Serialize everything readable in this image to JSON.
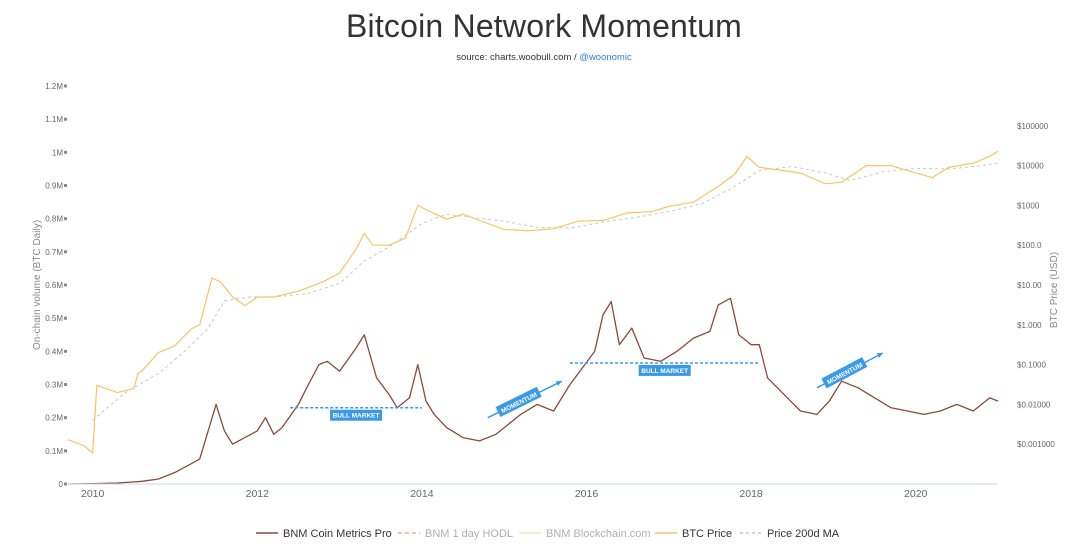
{
  "title": "Bitcoin Network Momentum",
  "subtitle": {
    "source": "source: charts.woobull.com / ",
    "handle": "@woonomic"
  },
  "colors": {
    "bnm_pro": "#8b4a3a",
    "bnm_hodl": "#f0b28a",
    "bnm_blockchain": "#f7e3b8",
    "btc_price": "#f5c562",
    "price_ma": "#c8c8c8",
    "annotation": "#3a9ae8"
  },
  "chart_data": {
    "type": "line",
    "title": "Bitcoin Network Momentum",
    "x_range": [
      2009.7,
      2021.0
    ],
    "x_ticks": [
      "2010",
      "2012",
      "2014",
      "2016",
      "2018",
      "2020"
    ],
    "y_left": {
      "label": "On-chain volume (BTC Daily)",
      "range": [
        0,
        1200000
      ],
      "ticks": [
        "0",
        "0.1M",
        "0.2M",
        "0.3M",
        "0.4M",
        "0.5M",
        "0.6M",
        "0.7M",
        "0.8M",
        "0.9M",
        "1M",
        "1.1M",
        "1.2M"
      ]
    },
    "y_right": {
      "label": "BTC Price (USD)",
      "scale": "log",
      "range": [
        0.0001,
        1000000
      ],
      "ticks": [
        "$0.001000",
        "$0.01000",
        "$0.1000",
        "$1.000",
        "$10.00",
        "$100.0",
        "$1000",
        "$10000",
        "$100000"
      ]
    },
    "legend_position": "bottom-center",
    "series": [
      {
        "name": "BNM Coin Metrics Pro",
        "axis": "left",
        "points": [
          [
            2009.7,
            0
          ],
          [
            2010.0,
            1000
          ],
          [
            2010.3,
            3000
          ],
          [
            2010.6,
            8000
          ],
          [
            2010.8,
            15000
          ],
          [
            2011.0,
            35000
          ],
          [
            2011.15,
            55000
          ],
          [
            2011.3,
            75000
          ],
          [
            2011.5,
            240000
          ],
          [
            2011.6,
            160000
          ],
          [
            2011.7,
            120000
          ],
          [
            2011.85,
            140000
          ],
          [
            2012.0,
            160000
          ],
          [
            2012.1,
            200000
          ],
          [
            2012.2,
            150000
          ],
          [
            2012.3,
            170000
          ],
          [
            2012.5,
            240000
          ],
          [
            2012.6,
            290000
          ],
          [
            2012.75,
            360000
          ],
          [
            2012.85,
            370000
          ],
          [
            2013.0,
            340000
          ],
          [
            2013.2,
            410000
          ],
          [
            2013.3,
            450000
          ],
          [
            2013.45,
            320000
          ],
          [
            2013.6,
            270000
          ],
          [
            2013.7,
            230000
          ],
          [
            2013.85,
            260000
          ],
          [
            2013.95,
            360000
          ],
          [
            2014.05,
            250000
          ],
          [
            2014.15,
            210000
          ],
          [
            2014.3,
            170000
          ],
          [
            2014.5,
            140000
          ],
          [
            2014.7,
            130000
          ],
          [
            2014.9,
            150000
          ],
          [
            2015.2,
            210000
          ],
          [
            2015.4,
            240000
          ],
          [
            2015.6,
            220000
          ],
          [
            2015.8,
            300000
          ],
          [
            2015.95,
            350000
          ],
          [
            2016.1,
            400000
          ],
          [
            2016.2,
            510000
          ],
          [
            2016.3,
            550000
          ],
          [
            2016.4,
            420000
          ],
          [
            2016.55,
            470000
          ],
          [
            2016.7,
            380000
          ],
          [
            2016.9,
            370000
          ],
          [
            2017.1,
            400000
          ],
          [
            2017.3,
            440000
          ],
          [
            2017.5,
            460000
          ],
          [
            2017.6,
            540000
          ],
          [
            2017.75,
            560000
          ],
          [
            2017.85,
            450000
          ],
          [
            2018.0,
            420000
          ],
          [
            2018.1,
            420000
          ],
          [
            2018.2,
            320000
          ],
          [
            2018.4,
            270000
          ],
          [
            2018.6,
            220000
          ],
          [
            2018.8,
            210000
          ],
          [
            2018.95,
            250000
          ],
          [
            2019.1,
            310000
          ],
          [
            2019.3,
            290000
          ],
          [
            2019.5,
            260000
          ],
          [
            2019.7,
            230000
          ],
          [
            2019.9,
            220000
          ],
          [
            2020.1,
            210000
          ],
          [
            2020.3,
            220000
          ],
          [
            2020.5,
            240000
          ],
          [
            2020.7,
            220000
          ],
          [
            2020.9,
            260000
          ],
          [
            2021.0,
            250000
          ]
        ]
      },
      {
        "name": "BNM 1 day HODL",
        "axis": "left",
        "points": []
      },
      {
        "name": "BNM Blockchain.com",
        "axis": "left",
        "points": []
      },
      {
        "name": "BTC Price",
        "axis": "right",
        "points": [
          [
            2009.7,
            0.0013
          ],
          [
            2009.9,
            0.0009
          ],
          [
            2010.0,
            0.0006
          ],
          [
            2010.05,
            0.03
          ],
          [
            2010.3,
            0.02
          ],
          [
            2010.5,
            0.025
          ],
          [
            2010.55,
            0.06
          ],
          [
            2010.6,
            0.07
          ],
          [
            2010.8,
            0.2
          ],
          [
            2011.0,
            0.3
          ],
          [
            2011.2,
            0.8
          ],
          [
            2011.3,
            1
          ],
          [
            2011.45,
            15
          ],
          [
            2011.55,
            12
          ],
          [
            2011.7,
            5
          ],
          [
            2011.85,
            3
          ],
          [
            2012.0,
            5
          ],
          [
            2012.2,
            5
          ],
          [
            2012.5,
            7
          ],
          [
            2012.8,
            12
          ],
          [
            2013.0,
            20
          ],
          [
            2013.2,
            80
          ],
          [
            2013.3,
            200
          ],
          [
            2013.4,
            100
          ],
          [
            2013.6,
            100
          ],
          [
            2013.8,
            150
          ],
          [
            2013.95,
            1000
          ],
          [
            2014.1,
            700
          ],
          [
            2014.3,
            450
          ],
          [
            2014.5,
            600
          ],
          [
            2014.8,
            350
          ],
          [
            2015.0,
            250
          ],
          [
            2015.3,
            230
          ],
          [
            2015.6,
            260
          ],
          [
            2015.9,
            400
          ],
          [
            2016.2,
            420
          ],
          [
            2016.5,
            650
          ],
          [
            2016.8,
            700
          ],
          [
            2017.0,
            950
          ],
          [
            2017.3,
            1200
          ],
          [
            2017.6,
            3000
          ],
          [
            2017.8,
            6000
          ],
          [
            2017.95,
            17000
          ],
          [
            2018.1,
            9000
          ],
          [
            2018.3,
            8000
          ],
          [
            2018.6,
            6500
          ],
          [
            2018.9,
            3500
          ],
          [
            2019.1,
            3800
          ],
          [
            2019.4,
            10000
          ],
          [
            2019.7,
            10000
          ],
          [
            2019.9,
            7500
          ],
          [
            2020.2,
            5000
          ],
          [
            2020.4,
            9000
          ],
          [
            2020.7,
            11500
          ],
          [
            2020.9,
            17000
          ],
          [
            2021.0,
            23000
          ]
        ]
      },
      {
        "name": "Price 200d MA",
        "axis": "right",
        "points": [
          [
            2010.0,
            0.004
          ],
          [
            2010.4,
            0.02
          ],
          [
            2010.8,
            0.06
          ],
          [
            2011.1,
            0.2
          ],
          [
            2011.4,
            0.8
          ],
          [
            2011.6,
            4
          ],
          [
            2011.9,
            5
          ],
          [
            2012.2,
            5
          ],
          [
            2012.6,
            6
          ],
          [
            2013.0,
            11
          ],
          [
            2013.3,
            40
          ],
          [
            2013.6,
            90
          ],
          [
            2014.0,
            350
          ],
          [
            2014.3,
            600
          ],
          [
            2014.6,
            500
          ],
          [
            2015.0,
            400
          ],
          [
            2015.4,
            280
          ],
          [
            2015.8,
            270
          ],
          [
            2016.2,
            380
          ],
          [
            2016.6,
            500
          ],
          [
            2017.0,
            700
          ],
          [
            2017.4,
            1100
          ],
          [
            2017.8,
            3000
          ],
          [
            2018.1,
            7500
          ],
          [
            2018.5,
            9500
          ],
          [
            2018.9,
            6500
          ],
          [
            2019.2,
            4200
          ],
          [
            2019.6,
            7000
          ],
          [
            2020.0,
            8500
          ],
          [
            2020.4,
            8200
          ],
          [
            2020.7,
            9500
          ],
          [
            2021.0,
            11500
          ]
        ]
      }
    ],
    "annotations": [
      {
        "text": "BULL MARKET",
        "kind": "line",
        "x": [
          2012.4,
          2014.0
        ],
        "y": 230000
      },
      {
        "text": "MOMENTUM",
        "kind": "arrow",
        "x": [
          2014.8,
          2015.7
        ],
        "y": [
          200000,
          310000
        ]
      },
      {
        "text": "BULL MARKET",
        "kind": "line",
        "x": [
          2015.8,
          2018.1
        ],
        "y": 365000
      },
      {
        "text": "MOMENTUM",
        "kind": "arrow",
        "x": [
          2018.8,
          2019.6
        ],
        "y": [
          290000,
          395000
        ]
      }
    ]
  }
}
